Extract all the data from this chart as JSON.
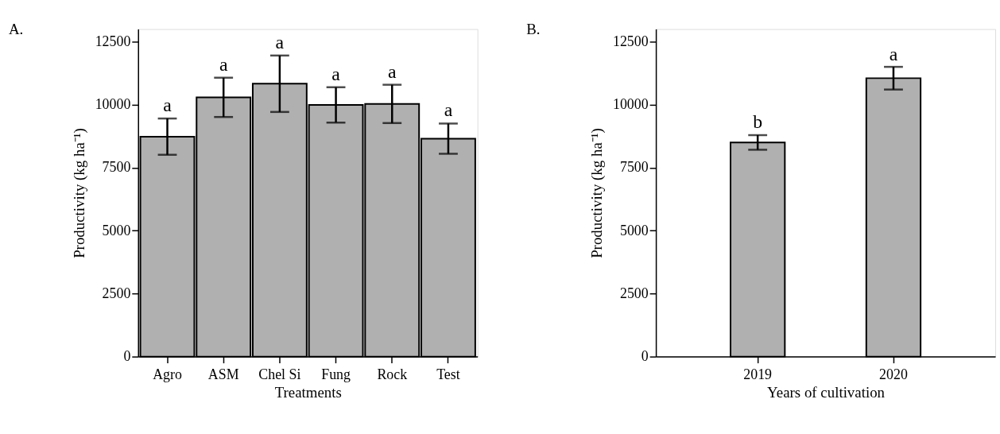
{
  "chart_data": [
    {
      "type": "bar",
      "title": "A.",
      "xlabel": "Treatments",
      "ylabel": "Productivity (kg ha⁻¹)",
      "categories": [
        "Agro",
        "ASM",
        "Chel Si",
        "Fung",
        "Rock",
        "Test"
      ],
      "series": [
        {
          "color": "#b0b0b0",
          "values": [
            8730,
            10290,
            10830,
            9990,
            10030,
            8650
          ],
          "errors": [
            720,
            780,
            1120,
            700,
            760,
            600
          ]
        }
      ],
      "ylim": [
        0,
        13000
      ],
      "yticks": [
        0,
        2500,
        5000,
        7500,
        10000,
        12500
      ],
      "grid": false,
      "annotations": [
        {
          "text": "a",
          "x": "Agro",
          "y": 9450
        },
        {
          "text": "a",
          "x": "ASM",
          "y": 11070
        },
        {
          "text": "a",
          "x": "Chel Si",
          "y": 11950
        },
        {
          "text": "a",
          "x": "Fung",
          "y": 10690
        },
        {
          "text": "a",
          "x": "Rock",
          "y": 10790
        },
        {
          "text": "a",
          "x": "Test",
          "y": 9250
        }
      ]
    },
    {
      "type": "bar",
      "title": "B.",
      "xlabel": "Years of cultivation",
      "ylabel": "Productivity (kg ha⁻¹)",
      "categories": [
        "2019",
        "2020"
      ],
      "series": [
        {
          "color": "#b0b0b0",
          "values": [
            8500,
            11050
          ],
          "errors": [
            290,
            450
          ]
        }
      ],
      "ylim": [
        0,
        13000
      ],
      "yticks": [
        0,
        2500,
        5000,
        7500,
        10000,
        12500
      ],
      "grid": false,
      "annotations": [
        {
          "text": "b",
          "x": "2019",
          "y": 8780
        },
        {
          "text": "a",
          "x": "2020",
          "y": 11470
        }
      ]
    }
  ]
}
